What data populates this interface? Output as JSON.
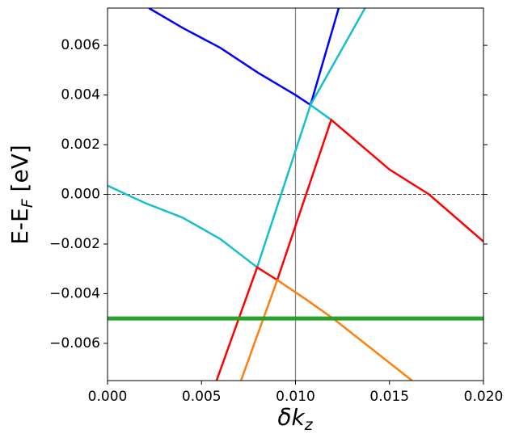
{
  "chart_data": {
    "type": "line",
    "xlabel": [
      "δk",
      "z"
    ],
    "ylabel": [
      "E-E",
      "F",
      " [eV]"
    ],
    "xlim": [
      0,
      0.02
    ],
    "ylim": [
      -0.0075,
      0.0075
    ],
    "xticks": [
      {
        "value": 0,
        "label": "0.000"
      },
      {
        "value": 0.005,
        "label": "0.005"
      },
      {
        "value": 0.01,
        "label": "0.010"
      },
      {
        "value": 0.015,
        "label": "0.015"
      },
      {
        "value": 0.02,
        "label": "0.020"
      }
    ],
    "yticks": [
      {
        "value": -0.006,
        "label": "−0.006"
      },
      {
        "value": -0.004,
        "label": "−0.004"
      },
      {
        "value": -0.002,
        "label": "−0.002"
      },
      {
        "value": 0,
        "label": "0.000"
      },
      {
        "value": 0.002,
        "label": "0.002"
      },
      {
        "value": 0.004,
        "label": "0.004"
      },
      {
        "value": 0.006,
        "label": "0.006"
      }
    ],
    "vlines": [
      0.01
    ],
    "hlines": [
      0
    ],
    "series": [
      {
        "color": "#0000ff",
        "width": 2.5,
        "x": [
          0.0022,
          0.004,
          0.006,
          0.008,
          0.01,
          0.0108,
          0.0123
        ],
        "values": [
          0.0075,
          0.0067,
          0.0059,
          0.0049,
          0.004,
          0.0036,
          0.0075
        ]
      },
      {
        "color": "#17becf",
        "width": 2.5,
        "x": [
          0,
          0.002,
          0.004,
          0.006,
          0.00796,
          0.0108,
          0.0119,
          null,
          0.0108,
          0.0137
        ],
        "values": [
          0.00035,
          -0.00035,
          -0.00094,
          -0.0018,
          -0.00294,
          0.0036,
          0.003,
          null,
          0.0036,
          0.0075
        ]
      },
      {
        "color": "#ff0000",
        "width": 2.5,
        "x": [
          0.0058,
          0.00796,
          0.00903,
          0.0119,
          0.015,
          0.0171,
          0.02
        ],
        "values": [
          -0.0075,
          -0.00294,
          -0.00345,
          0.003,
          0.001,
          0,
          -0.0019
        ]
      },
      {
        "color": "#ff7f0e",
        "width": 2.5,
        "x": [
          0.0071,
          0.00903,
          0.0105,
          0.012,
          0.0162
        ],
        "values": [
          -0.0075,
          -0.00345,
          -0.0042,
          -0.005,
          -0.0075
        ]
      },
      {
        "color": "#2ca02c",
        "width": 5,
        "x": [
          0,
          0.02
        ],
        "values": [
          -0.005,
          -0.005
        ]
      }
    ]
  }
}
